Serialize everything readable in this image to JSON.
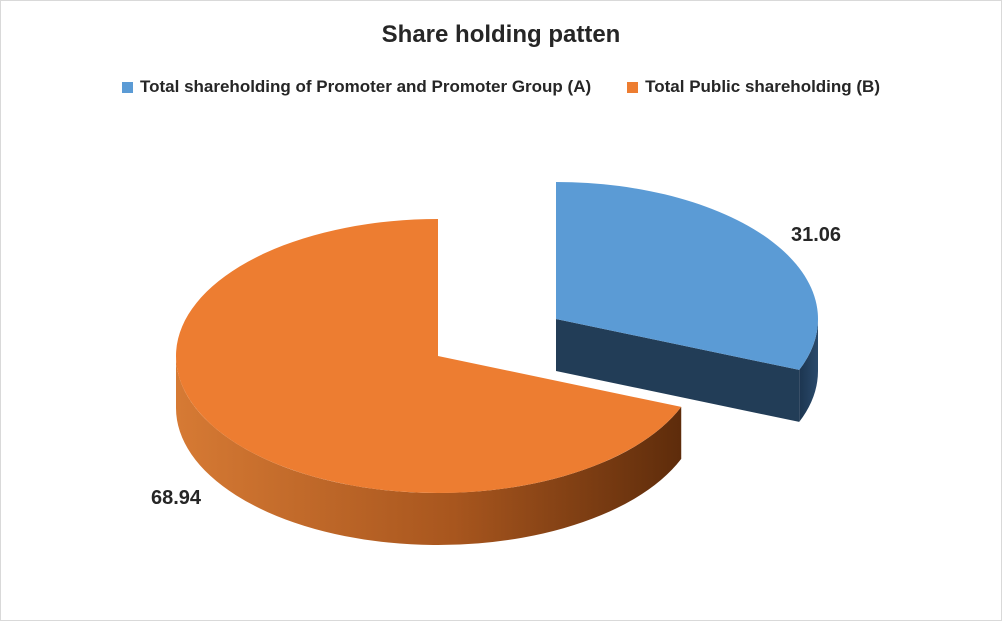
{
  "chart_data": {
    "type": "pie",
    "title": "Share holding patten",
    "categories": [
      "Total shareholding of Promoter and Promoter Group (A)",
      "Total Public shareholding (B)"
    ],
    "values": [
      31.06,
      68.94
    ],
    "value_labels": [
      "31.06",
      "68.94"
    ],
    "colors": [
      "#5b9bd5",
      "#ed7d31"
    ],
    "side_colors": [
      "#223d57",
      "#8a4212"
    ],
    "legend_position": "top",
    "exploded_slice": 0
  }
}
